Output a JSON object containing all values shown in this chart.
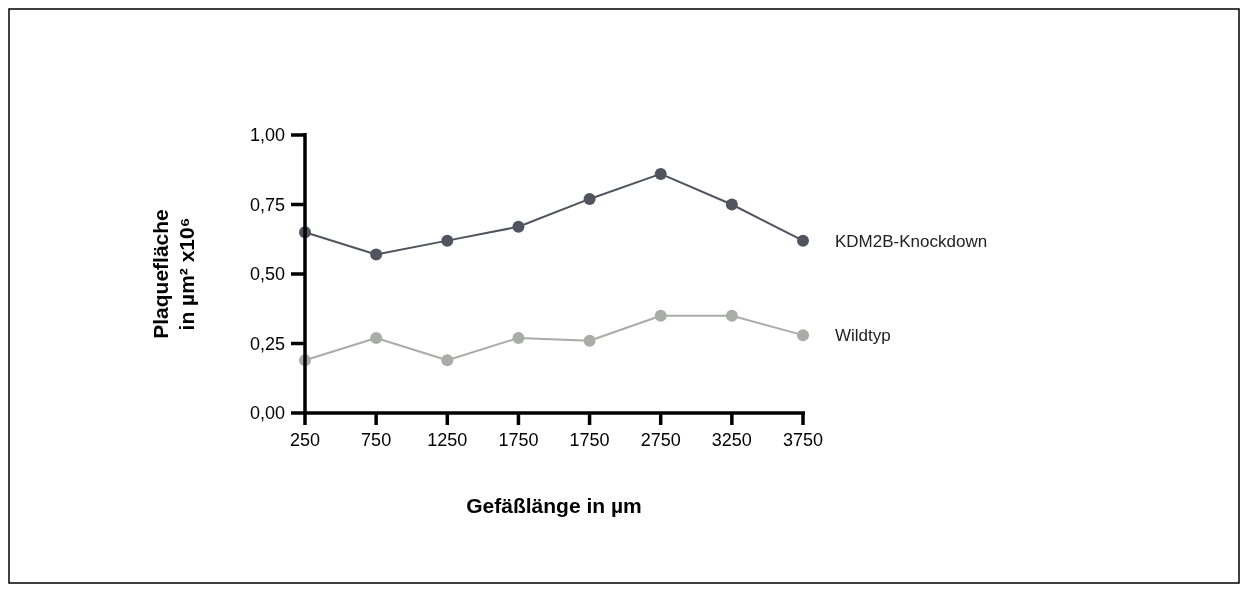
{
  "chart_data": {
    "type": "line",
    "xlabel": "Gefäßlänge in µm",
    "ylabel": "Plaquefläche\nin µm² x10⁶",
    "categories": [
      "250",
      "750",
      "1250",
      "1750",
      "1750",
      "2750",
      "3250",
      "3750"
    ],
    "series": [
      {
        "name": "KDM2B-Knockdown",
        "color": "#50545e",
        "values": [
          0.65,
          0.57,
          0.62,
          0.67,
          0.77,
          0.86,
          0.75,
          0.62
        ]
      },
      {
        "name": "Wildtyp",
        "color": "#a9aca9",
        "values": [
          0.19,
          0.27,
          0.19,
          0.27,
          0.26,
          0.35,
          0.35,
          0.28
        ]
      }
    ],
    "ylim": [
      0,
      1
    ],
    "yticks": [
      {
        "value": 0,
        "label": "0,00"
      },
      {
        "value": 0.25,
        "label": "0,25"
      },
      {
        "value": 0.5,
        "label": "0,50"
      },
      {
        "value": 0.75,
        "label": "0,75"
      },
      {
        "value": 1,
        "label": "1,00"
      }
    ],
    "grid": false,
    "marker": "circle",
    "line_style": "solid"
  }
}
